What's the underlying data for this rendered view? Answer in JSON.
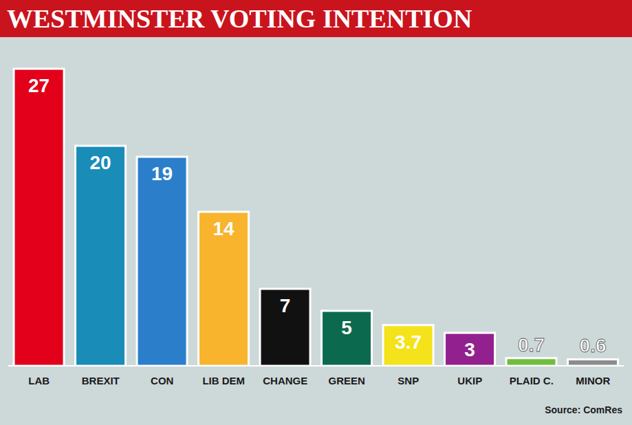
{
  "chart_data": {
    "type": "bar",
    "title": "WESTMINSTER VOTING INTENTION",
    "source": "Source: ComRes",
    "categories": [
      "LAB",
      "BREXIT",
      "CON",
      "LIB DEM",
      "CHANGE",
      "GREEN",
      "SNP",
      "UKIP",
      "PLAID C.",
      "MINOR"
    ],
    "values": [
      27,
      20,
      19,
      14,
      7,
      5,
      3.7,
      3,
      0.7,
      0.6
    ],
    "colors": [
      "#e2001a",
      "#1a8cb8",
      "#2b7fca",
      "#f8b42c",
      "#111111",
      "#0b6a4e",
      "#f4e21a",
      "#93208f",
      "#6fbe3c",
      "#8c8c8c"
    ],
    "ylim": [
      0,
      28
    ],
    "data_labels": true,
    "tick_labels": "x",
    "grid": false
  }
}
